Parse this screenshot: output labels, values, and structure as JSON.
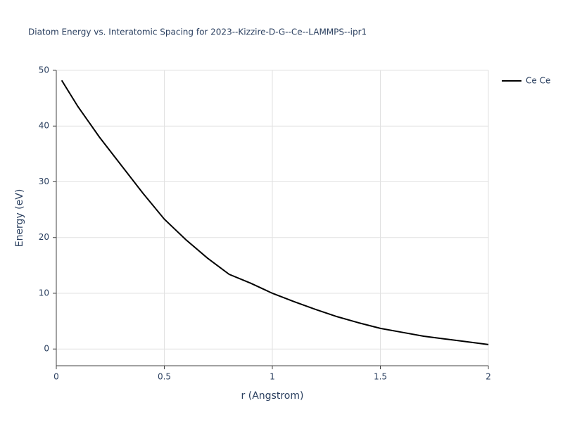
{
  "chart_data": {
    "type": "line",
    "title": "Diatom Energy vs. Interatomic Spacing for 2023--Kizzire-D-G--Ce--LAMMPS--ipr1",
    "x_label": "r (Angstrom)",
    "y_label": "Energy (eV)",
    "x": [
      0.025,
      0.1,
      0.2,
      0.3,
      0.4,
      0.5,
      0.6,
      0.7,
      0.8,
      0.9,
      1.0,
      1.1,
      1.2,
      1.3,
      1.4,
      1.5,
      1.6,
      1.7,
      1.8,
      1.9,
      2.0
    ],
    "series": [
      {
        "name": "Ce Ce",
        "color": "#000000",
        "values": [
          48.2,
          43.5,
          38,
          33,
          28,
          23.3,
          19.6,
          16.3,
          13.4,
          11.8,
          10,
          8.5,
          7.1,
          5.8,
          4.7,
          3.7,
          3.0,
          2.3,
          1.8,
          1.3,
          0.8
        ]
      }
    ],
    "xlim": [
      0,
      2
    ],
    "xticks": [
      0,
      0.5,
      1,
      1.5,
      2
    ],
    "ylim": [
      -3,
      50
    ],
    "yticks": [
      0,
      10,
      20,
      30,
      40,
      50
    ],
    "grid": true,
    "legend": "right"
  }
}
